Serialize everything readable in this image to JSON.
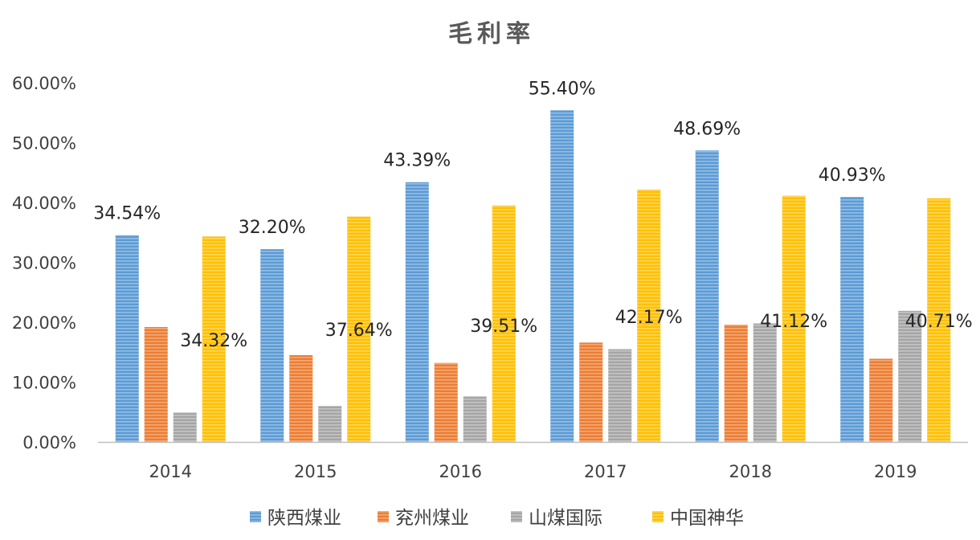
{
  "chart_data": {
    "type": "bar",
    "title": "毛利率",
    "categories": [
      "2014",
      "2015",
      "2016",
      "2017",
      "2018",
      "2019"
    ],
    "ylim": [
      0,
      60
    ],
    "yticks": [
      "0.00%",
      "10.00%",
      "20.00%",
      "30.00%",
      "40.00%",
      "50.00%",
      "60.00%"
    ],
    "grid": false,
    "legend_position": "bottom",
    "series": [
      {
        "name": "陕西煤业",
        "color": "#5B9BD5",
        "values": [
          34.54,
          32.2,
          43.39,
          55.4,
          48.69,
          40.93
        ],
        "labels": [
          "34.54%",
          "32.20%",
          "43.39%",
          "55.40%",
          "48.69%",
          "40.93%"
        ]
      },
      {
        "name": "兖州煤业",
        "color": "#ED7D31",
        "values": [
          19.2,
          14.5,
          13.2,
          16.6,
          19.6,
          13.9
        ]
      },
      {
        "name": "山煤国际",
        "color": "#A5A5A5",
        "values": [
          4.9,
          6.0,
          7.6,
          15.5,
          19.8,
          21.9
        ]
      },
      {
        "name": "中国神华",
        "color": "#FFC000",
        "values": [
          34.32,
          37.64,
          39.51,
          42.17,
          41.12,
          40.71
        ],
        "labels": [
          "34.32%",
          "37.64%",
          "39.51%",
          "42.17%",
          "41.12%",
          "40.71%"
        ]
      }
    ]
  }
}
